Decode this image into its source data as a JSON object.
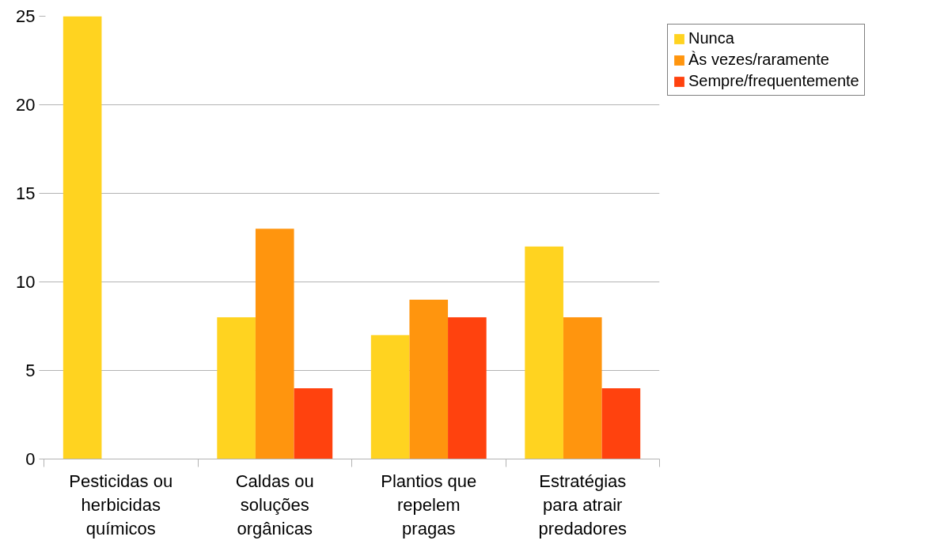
{
  "chart_data": {
    "type": "bar",
    "categories": [
      "Pesticidas ou herbicidas químicos",
      "Caldas ou soluções orgânicas",
      "Plantios que repelem pragas",
      "Estratégias para atrair predadores"
    ],
    "series": [
      {
        "name": "Nunca",
        "color": "#ffd320",
        "values": [
          25,
          8,
          7,
          12
        ]
      },
      {
        "name": "Às vezes/raramente",
        "color": "#ff950e",
        "values": [
          0,
          13,
          9,
          8
        ]
      },
      {
        "name": "Sempre/frequentemente",
        "color": "#ff420e",
        "values": [
          0,
          4,
          8,
          4
        ]
      }
    ],
    "ylim": [
      0,
      25
    ],
    "yticks": [
      0,
      5,
      10,
      15,
      20,
      25
    ],
    "grid": "y",
    "legend": "top right"
  }
}
